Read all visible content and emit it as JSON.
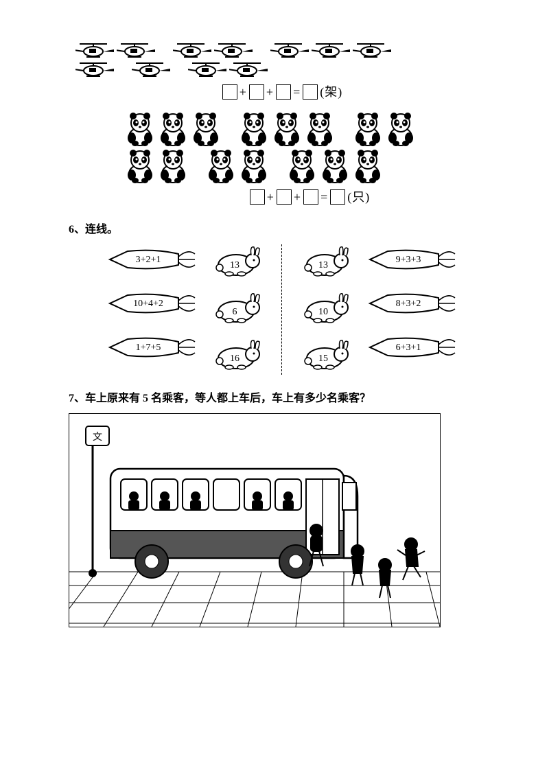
{
  "problem5": {
    "helicopters": {
      "groups": [
        3,
        3,
        5
      ],
      "row_layout": [
        [
          2,
          2,
          3
        ],
        [
          1,
          1,
          2
        ]
      ],
      "unit": "(架)"
    },
    "pandas": {
      "groups": [
        5,
        5,
        5
      ],
      "row_layout": [
        [
          3,
          3,
          2
        ],
        [
          2,
          2,
          3
        ]
      ],
      "unit": "(只)"
    },
    "equation_template": "□+□+□=□"
  },
  "problem6": {
    "label": "6、连线。",
    "left": {
      "carrots": [
        "3+2+1",
        "10+4+2",
        "1+7+5"
      ],
      "rabbits": [
        13,
        6,
        16
      ]
    },
    "right": {
      "rabbits": [
        13,
        10,
        15
      ],
      "carrots": [
        "9+3+3",
        "8+3+2",
        "6+3+1"
      ]
    }
  },
  "problem7": {
    "label": "7、车上原来有 5 名乘客，等人都上车后，车上有多少名乘客？",
    "bus_sign": "文",
    "people_outside": 4,
    "people_on_bus": 5
  },
  "colors": {
    "ink": "#000000",
    "paper": "#ffffff",
    "shade": "#555555"
  }
}
